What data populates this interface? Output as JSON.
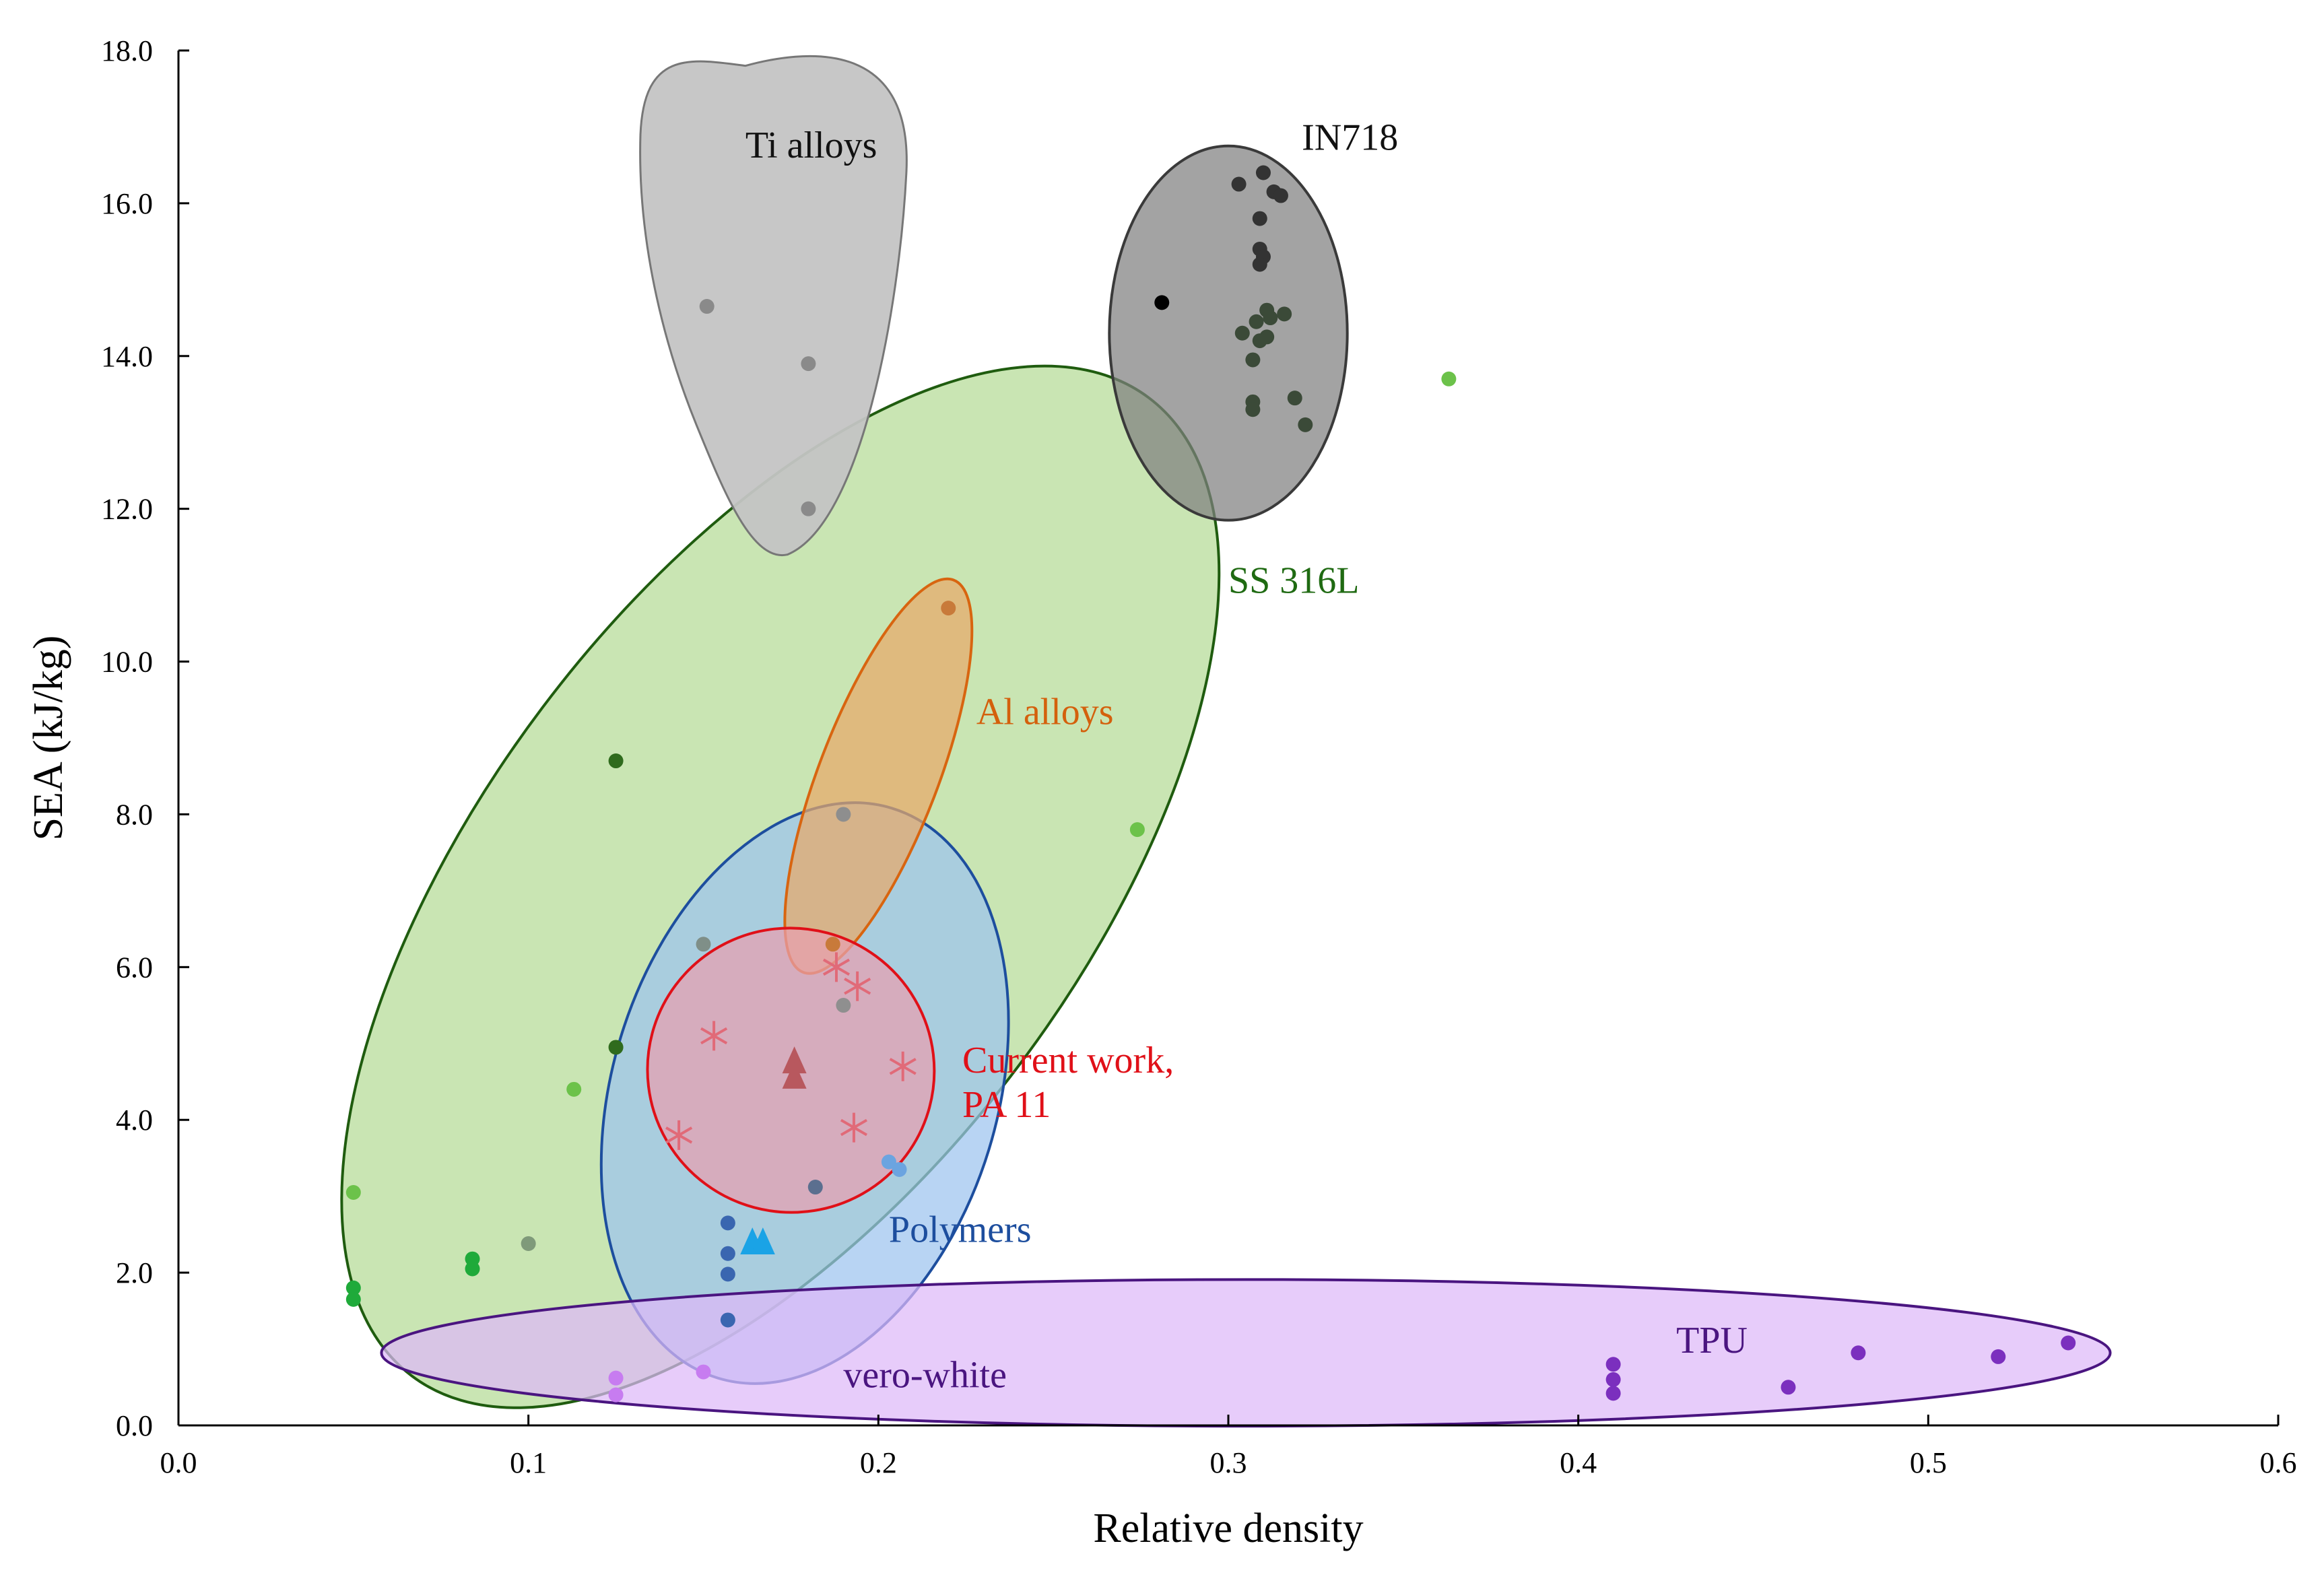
{
  "chart_data": {
    "type": "scatter",
    "title": "",
    "xlabel": "Relative density",
    "ylabel": "SEA (kJ/kg)",
    "xlim": [
      0.0,
      0.6
    ],
    "ylim": [
      0.0,
      18.0
    ],
    "xticks": [
      "0.0",
      "0.1",
      "0.2",
      "0.3",
      "0.4",
      "0.5",
      "0.6"
    ],
    "yticks": [
      "0.0",
      "2.0",
      "4.0",
      "6.0",
      "8.0",
      "10.0",
      "12.0",
      "14.0",
      "16.0",
      "18.0"
    ],
    "grid": false,
    "series": [
      {
        "name": "SS 316L",
        "label_lines": [
          "SS 316L"
        ],
        "fill": "#b7dc9a",
        "stroke": "#1f5c0f",
        "label_color": "#1f6a12",
        "region": {
          "cx": 0.172,
          "cy": 7.05,
          "rx_data": 0.175,
          "ry_data": 3.9,
          "angle_deg": -53
        },
        "label_pos": {
          "x": 0.3,
          "y": 10.9
        },
        "points": [
          {
            "x": 0.125,
            "y": 8.7,
            "color": "#2f6b1d"
          },
          {
            "x": 0.125,
            "y": 4.95,
            "color": "#2f6b1d"
          },
          {
            "x": 0.113,
            "y": 4.4,
            "color": "#6cc24a"
          },
          {
            "x": 0.05,
            "y": 3.05,
            "color": "#6cc24a"
          },
          {
            "x": 0.05,
            "y": 1.8,
            "color": "#1faa3a"
          },
          {
            "x": 0.05,
            "y": 1.65,
            "color": "#1faa3a"
          },
          {
            "x": 0.084,
            "y": 2.18,
            "color": "#1faa3a"
          },
          {
            "x": 0.084,
            "y": 2.05,
            "color": "#1faa3a"
          },
          {
            "x": 0.1,
            "y": 2.38,
            "color": "#7f9a7a"
          },
          {
            "x": 0.274,
            "y": 7.8,
            "color": "#6cc24a"
          },
          {
            "x": 0.363,
            "y": 13.7,
            "color": "#6cc24a"
          }
        ]
      },
      {
        "name": "Ti alloys",
        "label_lines": [
          "Ti alloys"
        ],
        "fill": "#c4c4c4",
        "stroke": "#777777",
        "label_color": "#111111",
        "region": {
          "kind": "blob"
        },
        "label_pos": {
          "x": 0.162,
          "y": 16.6
        },
        "points": [
          {
            "x": 0.151,
            "y": 14.65,
            "color": "#8a8a8a"
          },
          {
            "x": 0.18,
            "y": 13.9,
            "color": "#8a8a8a"
          },
          {
            "x": 0.18,
            "y": 12.0,
            "color": "#8a8a8a"
          }
        ]
      },
      {
        "name": "IN718",
        "label_lines": [
          "IN718"
        ],
        "fill": "#808080",
        "stroke": "#3a3a3a",
        "label_color": "#111111",
        "region": {
          "cx": 0.3,
          "cy": 14.3,
          "rx_data": 0.034,
          "ry_data": 2.45,
          "angle_deg": 0
        },
        "label_pos": {
          "x": 0.321,
          "y": 16.7
        },
        "points": [
          {
            "x": 0.281,
            "y": 14.7,
            "color": "#000000"
          },
          {
            "x": 0.303,
            "y": 16.25,
            "color": "#333333"
          },
          {
            "x": 0.31,
            "y": 16.4,
            "color": "#333333"
          },
          {
            "x": 0.313,
            "y": 16.15,
            "color": "#333333"
          },
          {
            "x": 0.315,
            "y": 16.1,
            "color": "#333333"
          },
          {
            "x": 0.309,
            "y": 15.8,
            "color": "#333333"
          },
          {
            "x": 0.309,
            "y": 15.4,
            "color": "#333333"
          },
          {
            "x": 0.31,
            "y": 15.3,
            "color": "#333333"
          },
          {
            "x": 0.309,
            "y": 15.2,
            "color": "#333333"
          },
          {
            "x": 0.311,
            "y": 14.6,
            "color": "#3b4a38"
          },
          {
            "x": 0.312,
            "y": 14.5,
            "color": "#3b4a38"
          },
          {
            "x": 0.316,
            "y": 14.55,
            "color": "#3b4a38"
          },
          {
            "x": 0.308,
            "y": 14.45,
            "color": "#3b4a38"
          },
          {
            "x": 0.304,
            "y": 14.3,
            "color": "#3b4a38"
          },
          {
            "x": 0.311,
            "y": 14.25,
            "color": "#3b4a38"
          },
          {
            "x": 0.309,
            "y": 14.2,
            "color": "#3b4a38"
          },
          {
            "x": 0.307,
            "y": 13.95,
            "color": "#3b4a38"
          },
          {
            "x": 0.319,
            "y": 13.45,
            "color": "#3b4a38"
          },
          {
            "x": 0.307,
            "y": 13.4,
            "color": "#3b4a38"
          },
          {
            "x": 0.307,
            "y": 13.3,
            "color": "#3b4a38"
          },
          {
            "x": 0.322,
            "y": 13.1,
            "color": "#3b4a38"
          }
        ]
      },
      {
        "name": "Al alloys",
        "label_lines": [
          "Al alloys"
        ],
        "fill": "#e7a96a",
        "stroke": "#d86510",
        "label_color": "#d4600c",
        "region": {
          "cx": 0.2,
          "cy": 8.5,
          "rx_data": 0.017,
          "ry_data": 2.75,
          "angle_deg": 21
        },
        "label_pos": {
          "x": 0.228,
          "y": 9.18
        },
        "points": [
          {
            "x": 0.22,
            "y": 10.7,
            "color": "#c87a3a"
          },
          {
            "x": 0.19,
            "y": 8.0,
            "color": "#8e8e8e"
          },
          {
            "x": 0.187,
            "y": 6.3,
            "color": "#c87a3a"
          }
        ]
      },
      {
        "name": "Polymers",
        "label_lines": [
          "Polymers"
        ],
        "fill": "#9dc3ee",
        "stroke": "#1d4e9e",
        "label_color": "#1d4e9e",
        "region": {
          "cx": 0.179,
          "cy": 4.35,
          "rx_data": 0.055,
          "ry_data": 3.9,
          "angle_deg": 17
        },
        "label_pos": {
          "x": 0.203,
          "y": 2.4
        },
        "points": [
          {
            "x": 0.15,
            "y": 6.3,
            "color": "#7f8f88"
          },
          {
            "x": 0.182,
            "y": 3.12,
            "color": "#5b6f8f"
          },
          {
            "x": 0.203,
            "y": 3.45,
            "color": "#6ba4e0"
          },
          {
            "x": 0.206,
            "y": 3.35,
            "color": "#6ba4e0"
          },
          {
            "x": 0.157,
            "y": 2.65,
            "color": "#3a66b0"
          },
          {
            "x": 0.157,
            "y": 2.25,
            "color": "#3a66b0"
          },
          {
            "x": 0.157,
            "y": 1.98,
            "color": "#3a66b0"
          },
          {
            "x": 0.157,
            "y": 1.38,
            "color": "#3a66b0"
          }
        ],
        "triangles": [
          {
            "x": 0.164,
            "y": 2.38,
            "color": "#1aa3e6"
          },
          {
            "x": 0.167,
            "y": 2.38,
            "color": "#1aa3e6"
          }
        ]
      },
      {
        "name": "Current work, PA 11",
        "label_lines": [
          "Current work,",
          "PA 11"
        ],
        "fill": "#e8a0b0",
        "stroke": "#e01018",
        "label_color": "#e01018",
        "region": {
          "cx": 0.175,
          "cy": 4.65,
          "rx_data": 0.041,
          "ry_data": 1.86,
          "angle_deg": 15
        },
        "label_pos": {
          "x": 0.224,
          "y": 4.62
        },
        "stars": [
          {
            "x": 0.153,
            "y": 5.1
          },
          {
            "x": 0.143,
            "y": 3.8
          },
          {
            "x": 0.188,
            "y": 6.0
          },
          {
            "x": 0.194,
            "y": 5.75
          },
          {
            "x": 0.207,
            "y": 4.7
          },
          {
            "x": 0.193,
            "y": 3.9
          }
        ],
        "star_color": "#e16a78",
        "triangles": [
          {
            "x": 0.176,
            "y": 4.75,
            "color": "#b8585e"
          },
          {
            "x": 0.176,
            "y": 4.55,
            "color": "#b8585e"
          }
        ],
        "points": [
          {
            "x": 0.19,
            "y": 5.5,
            "color": "#8f8f8f"
          }
        ]
      },
      {
        "name": "TPU",
        "label_lines": [
          "TPU"
        ],
        "fill": "#deb8f8",
        "stroke": "#4a1580",
        "label_color": "#4a1580",
        "region": {
          "cx": 0.305,
          "cy": 0.95,
          "rx_data": 0.247,
          "ry_data": 0.96,
          "angle_deg": 0
        },
        "label_pos": {
          "x": 0.428,
          "y": 0.95
        },
        "points": [
          {
            "x": 0.41,
            "y": 0.8,
            "color": "#7b2fbe"
          },
          {
            "x": 0.41,
            "y": 0.6,
            "color": "#7b2fbe"
          },
          {
            "x": 0.41,
            "y": 0.42,
            "color": "#7b2fbe"
          },
          {
            "x": 0.46,
            "y": 0.5,
            "color": "#7b2fbe"
          },
          {
            "x": 0.48,
            "y": 0.95,
            "color": "#7b2fbe"
          },
          {
            "x": 0.52,
            "y": 0.9,
            "color": "#7b2fbe"
          },
          {
            "x": 0.54,
            "y": 1.08,
            "color": "#7b2fbe"
          }
        ]
      },
      {
        "name": "vero-white",
        "label_lines": [
          "vero-white"
        ],
        "fill": "none",
        "stroke": "none",
        "label_color": "#4a1580",
        "label_pos": {
          "x": 0.19,
          "y": 0.5
        },
        "points": [
          {
            "x": 0.125,
            "y": 0.62,
            "color": "#c77cf0"
          },
          {
            "x": 0.125,
            "y": 0.4,
            "color": "#c77cf0"
          },
          {
            "x": 0.15,
            "y": 0.7,
            "color": "#c77cf0"
          }
        ]
      }
    ]
  }
}
